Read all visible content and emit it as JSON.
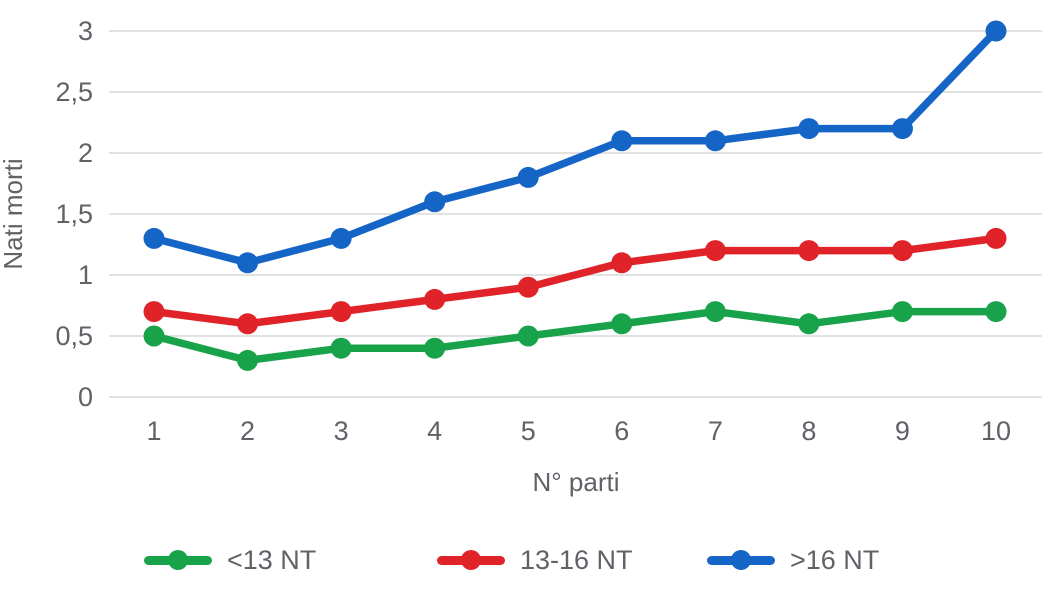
{
  "chart_data": {
    "type": "line",
    "title": "",
    "xlabel": "N° parti",
    "ylabel": "Nati morti",
    "categories": [
      "1",
      "2",
      "3",
      "4",
      "5",
      "6",
      "7",
      "8",
      "9",
      "10"
    ],
    "series": [
      {
        "name": "<13 NT",
        "color": "#18a34a",
        "values": [
          0.5,
          0.3,
          0.4,
          0.4,
          0.5,
          0.6,
          0.7,
          0.6,
          0.7,
          0.7
        ]
      },
      {
        "name": "13-16 NT",
        "color": "#e02328",
        "values": [
          0.7,
          0.6,
          0.7,
          0.8,
          0.9,
          1.1,
          1.2,
          1.2,
          1.2,
          1.3
        ]
      },
      {
        "name": ">16 NT",
        "color": "#1565c6",
        "values": [
          1.3,
          1.1,
          1.3,
          1.6,
          1.8,
          2.1,
          2.1,
          2.2,
          2.2,
          3.0
        ]
      }
    ],
    "ylim": [
      0,
      3
    ],
    "y_ticks": [
      {
        "value": 0,
        "label": "0"
      },
      {
        "value": 0.5,
        "label": "0,5"
      },
      {
        "value": 1,
        "label": "1"
      },
      {
        "value": 1.5,
        "label": "1,5"
      },
      {
        "value": 2,
        "label": "2"
      },
      {
        "value": 2.5,
        "label": "2,5"
      },
      {
        "value": 3,
        "label": "3"
      }
    ],
    "grid": "horizontal-only",
    "legend_position": "bottom"
  },
  "colors": {
    "background": "#ffffff",
    "gridline": "#d9d9d9",
    "text": "#5f6368"
  }
}
